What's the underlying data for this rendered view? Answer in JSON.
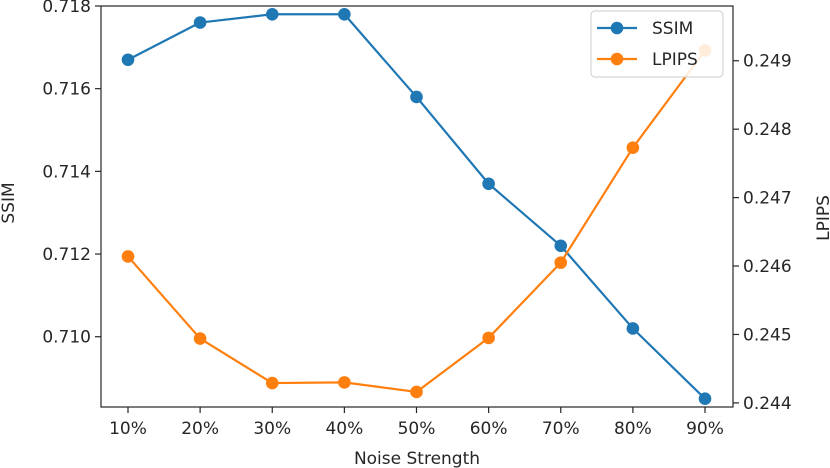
{
  "chart_data": {
    "type": "line",
    "xlabel": "Noise Strength",
    "categories": [
      "10%",
      "20%",
      "30%",
      "40%",
      "50%",
      "60%",
      "70%",
      "80%",
      "90%"
    ],
    "left_axis": {
      "label": "SSIM",
      "ylim": [
        0.7083,
        0.718
      ],
      "ticks": [
        "0.710",
        "0.712",
        "0.714",
        "0.716",
        "0.718"
      ]
    },
    "right_axis": {
      "label": "LPIPS",
      "ylim": [
        0.24394,
        0.2498
      ],
      "ticks": [
        "0.244",
        "0.245",
        "0.246",
        "0.247",
        "0.248",
        "0.249"
      ]
    },
    "series": [
      {
        "name": "SSIM",
        "axis": "left",
        "color": "#1f77b4",
        "values": [
          0.7167,
          0.7176,
          0.7178,
          0.7178,
          0.7158,
          0.7137,
          0.7122,
          0.7102,
          0.7085
        ]
      },
      {
        "name": "LPIPS",
        "axis": "right",
        "color": "#ff7f0e",
        "values": [
          0.24614,
          0.24494,
          0.24429,
          0.2443,
          0.24416,
          0.24495,
          0.24605,
          0.24773,
          0.24915
        ]
      }
    ],
    "legend": {
      "position": "top-right"
    },
    "grid": false
  }
}
